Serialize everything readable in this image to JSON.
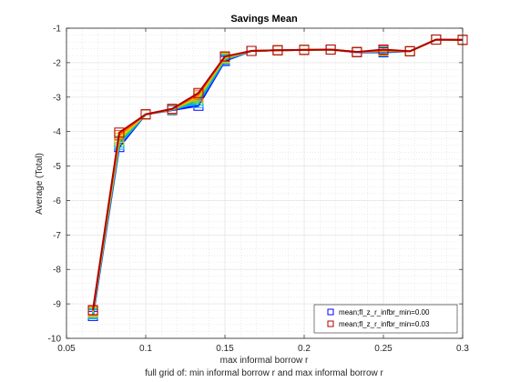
{
  "chart_data": {
    "type": "line",
    "title": "Savings Mean",
    "xlabel": "max informal borrow r",
    "ylabel": "Average (Total)",
    "footnote": "full grid of: min informal borrow r and max informal borrow r",
    "xlim": [
      0.05,
      0.3
    ],
    "ylim": [
      -10,
      -1
    ],
    "xticks": [
      0.05,
      0.1,
      0.15,
      0.2,
      0.25,
      0.3
    ],
    "xtick_labels": [
      "0.05",
      "0.1",
      "0.15",
      "0.2",
      "0.25",
      "0.3"
    ],
    "yticks": [
      -10,
      -9,
      -8,
      -7,
      -6,
      -5,
      -4,
      -3,
      -2,
      -1
    ],
    "ytick_labels": [
      "-10",
      "-9",
      "-8",
      "-7",
      "-6",
      "-5",
      "-4",
      "-3",
      "-2",
      "-1"
    ],
    "grid": true,
    "legend_position": "bottom-right",
    "x": [
      0.0667,
      0.0833,
      0.1,
      0.1167,
      0.1333,
      0.15,
      0.1667,
      0.1833,
      0.2,
      0.2167,
      0.2333,
      0.25,
      0.2667,
      0.2833,
      0.3
    ],
    "series": [
      {
        "name": "mean;fl_z_r_infbr_min=0.00",
        "color": "#0000ff",
        "marker": "square",
        "legend": true,
        "values": [
          -9.35,
          -4.45,
          -3.5,
          -3.38,
          -3.25,
          -1.95,
          -1.66,
          -1.64,
          -1.63,
          -1.62,
          -1.7,
          -1.7,
          -1.67,
          -1.33,
          -1.34
        ]
      },
      {
        "name": "",
        "color": "#00a6ff",
        "marker": "square",
        "legend": false,
        "values": [
          -9.3,
          -4.38,
          -3.5,
          -3.37,
          -3.17,
          -1.92,
          -1.66,
          -1.64,
          -1.63,
          -1.62,
          -1.69,
          -1.68,
          -1.67,
          -1.33,
          -1.34
        ]
      },
      {
        "name": "",
        "color": "#00c0a0",
        "marker": "square",
        "legend": false,
        "values": [
          -9.27,
          -4.32,
          -3.5,
          -3.36,
          -3.1,
          -1.89,
          -1.66,
          -1.64,
          -1.63,
          -1.62,
          -1.69,
          -1.67,
          -1.67,
          -1.33,
          -1.34
        ]
      },
      {
        "name": "",
        "color": "#90d020",
        "marker": "square",
        "legend": false,
        "values": [
          -9.24,
          -4.25,
          -3.5,
          -3.36,
          -3.04,
          -1.87,
          -1.66,
          -1.64,
          -1.63,
          -1.62,
          -1.69,
          -1.66,
          -1.67,
          -1.33,
          -1.34
        ]
      },
      {
        "name": "",
        "color": "#ffc000",
        "marker": "square",
        "legend": false,
        "values": [
          -9.22,
          -4.18,
          -3.5,
          -3.35,
          -2.98,
          -1.85,
          -1.66,
          -1.64,
          -1.63,
          -1.62,
          -1.69,
          -1.65,
          -1.67,
          -1.33,
          -1.34
        ]
      },
      {
        "name": "",
        "color": "#ff6000",
        "marker": "square",
        "legend": false,
        "values": [
          -9.2,
          -4.1,
          -3.5,
          -3.35,
          -2.93,
          -1.83,
          -1.66,
          -1.64,
          -1.63,
          -1.62,
          -1.69,
          -1.64,
          -1.67,
          -1.33,
          -1.34
        ]
      },
      {
        "name": "mean;fl_z_r_infbr_min=0.03",
        "color": "#b00000",
        "marker": "square",
        "legend": true,
        "values": [
          -9.18,
          -4.03,
          -3.5,
          -3.34,
          -2.88,
          -1.82,
          -1.66,
          -1.64,
          -1.63,
          -1.62,
          -1.69,
          -1.62,
          -1.67,
          -1.33,
          -1.34
        ]
      }
    ]
  }
}
